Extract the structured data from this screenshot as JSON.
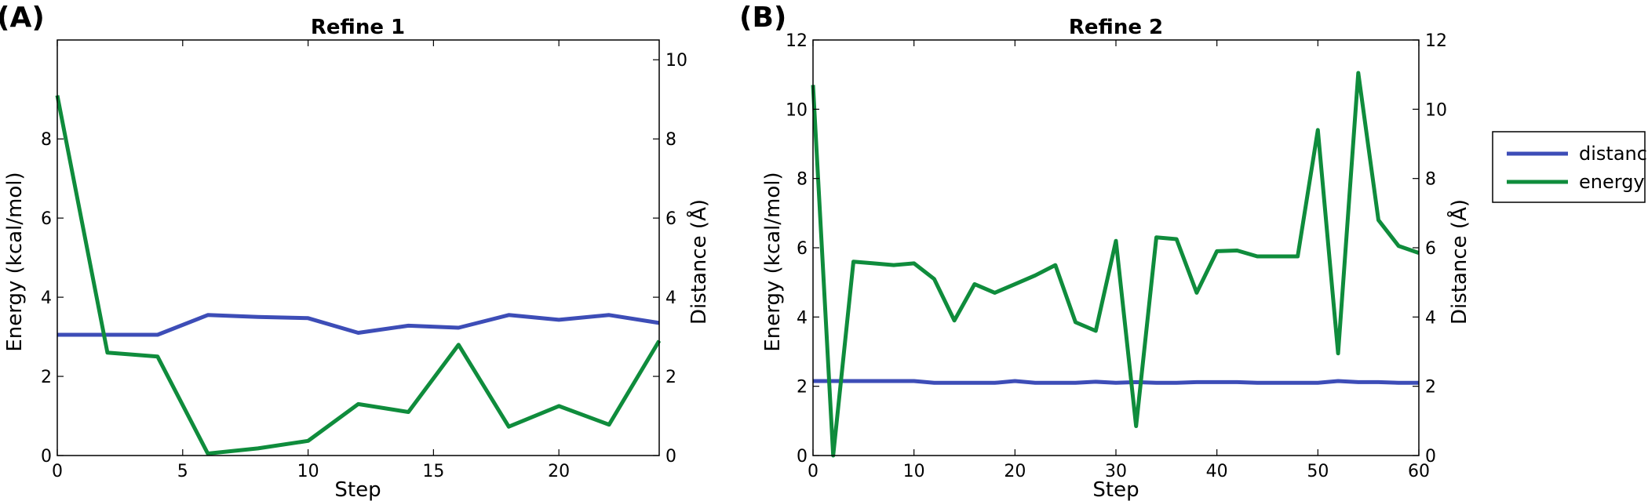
{
  "chart_data": [
    {
      "type": "line",
      "panel_label": "(A)",
      "title": "Refine 1",
      "xlabel": "Step",
      "ylabel_left": "Energy (kcal/mol)",
      "ylabel_right": "Distance (Å)",
      "xlim": [
        0,
        24
      ],
      "ylim_left": [
        0,
        10.5
      ],
      "ylim_right": [
        0,
        10.5
      ],
      "x_ticks": [
        0,
        5,
        10,
        15,
        20
      ],
      "y_ticks_left": [
        0,
        2,
        4,
        6,
        8
      ],
      "y_ticks_right": [
        0,
        2,
        4,
        6,
        8,
        10
      ],
      "x": [
        0,
        2,
        4,
        6,
        8,
        10,
        12,
        14,
        16,
        18,
        20,
        22,
        24
      ],
      "series": [
        {
          "name": "distance",
          "axis": "right",
          "color": "#3d4db7",
          "values": [
            3.05,
            3.05,
            3.05,
            3.55,
            3.5,
            3.47,
            3.1,
            3.28,
            3.23,
            3.55,
            3.43,
            3.55,
            3.35
          ]
        },
        {
          "name": "energy",
          "axis": "left",
          "color": "#0f8c3c",
          "values": [
            9.1,
            2.6,
            2.5,
            0.05,
            0.18,
            0.37,
            1.3,
            1.1,
            2.8,
            0.73,
            1.25,
            0.78,
            2.9
          ]
        }
      ]
    },
    {
      "type": "line",
      "panel_label": "(B)",
      "title": "Refine 2",
      "xlabel": "Step",
      "ylabel_left": "Energy (kcal/mol)",
      "ylabel_right": "Distance (Å)",
      "xlim": [
        0,
        60
      ],
      "ylim_left": [
        0,
        12
      ],
      "ylim_right": [
        0,
        12
      ],
      "x_ticks": [
        0,
        10,
        20,
        30,
        40,
        50,
        60
      ],
      "y_ticks_left": [
        0,
        2,
        4,
        6,
        8,
        10,
        12
      ],
      "y_ticks_right": [
        0,
        2,
        4,
        6,
        8,
        10,
        12
      ],
      "x": [
        0,
        2,
        4,
        6,
        8,
        10,
        12,
        14,
        16,
        18,
        20,
        22,
        24,
        26,
        28,
        30,
        32,
        34,
        36,
        38,
        40,
        42,
        44,
        46,
        48,
        50,
        52,
        54,
        56,
        58,
        60
      ],
      "series": [
        {
          "name": "distance",
          "axis": "right",
          "color": "#3d4db7",
          "values": [
            2.15,
            2.15,
            2.15,
            2.15,
            2.15,
            2.15,
            2.1,
            2.1,
            2.1,
            2.1,
            2.15,
            2.1,
            2.1,
            2.1,
            2.13,
            2.1,
            2.12,
            2.1,
            2.1,
            2.12,
            2.12,
            2.12,
            2.1,
            2.1,
            2.1,
            2.1,
            2.15,
            2.12,
            2.12,
            2.1,
            2.1
          ]
        },
        {
          "name": "energy",
          "axis": "left",
          "color": "#0f8c3c",
          "values": [
            10.7,
            0.0,
            5.6,
            5.55,
            5.5,
            5.55,
            5.1,
            3.9,
            4.95,
            4.7,
            4.95,
            5.2,
            5.5,
            3.85,
            3.6,
            6.2,
            0.85,
            6.3,
            6.25,
            4.7,
            5.9,
            5.92,
            5.75,
            5.75,
            5.75,
            9.4,
            2.95,
            11.05,
            6.8,
            6.05,
            5.85
          ]
        }
      ]
    }
  ],
  "legend": {
    "position": "right-outside",
    "items": [
      {
        "label": "distance",
        "color": "#3d4db7"
      },
      {
        "label": "energy",
        "color": "#0f8c3c"
      }
    ]
  }
}
